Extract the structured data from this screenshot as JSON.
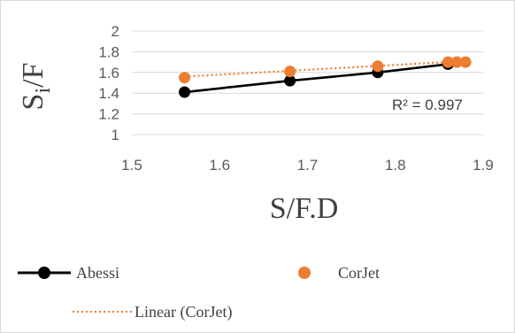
{
  "chart_data": {
    "type": "scatter",
    "xlabel": "S/F.D",
    "ylabel": "Si/F",
    "ylabel_parts": {
      "main": "S",
      "sub": "i",
      "rest": "/F"
    },
    "xlim": [
      1.5,
      1.9
    ],
    "ylim": [
      1,
      2
    ],
    "x_ticks": [
      "1.5",
      "1.6",
      "1.7",
      "1.8",
      "1.9"
    ],
    "y_ticks": [
      "1",
      "1.2",
      "1.4",
      "1.6",
      "1.8",
      "2"
    ],
    "grid": "horizontal",
    "legend_position": "bottom",
    "annotation": "R² = 0.997",
    "series": [
      {
        "name": "Abessi",
        "color": "#000000",
        "style": "line-with-markers",
        "points": [
          [
            1.56,
            1.41
          ],
          [
            1.68,
            1.52
          ],
          [
            1.78,
            1.6
          ],
          [
            1.86,
            1.68
          ]
        ]
      },
      {
        "name": "CorJet",
        "color": "#ED7D31",
        "style": "markers",
        "points": [
          [
            1.56,
            1.55
          ],
          [
            1.68,
            1.61
          ],
          [
            1.78,
            1.66
          ],
          [
            1.86,
            1.7
          ],
          [
            1.87,
            1.7
          ],
          [
            1.88,
            1.7
          ]
        ]
      }
    ],
    "trendline": {
      "name": "Linear (CorJet)",
      "color": "#ED7D31",
      "style": "dotted",
      "from": [
        1.56,
        1.56
      ],
      "to": [
        1.88,
        1.71
      ]
    }
  }
}
